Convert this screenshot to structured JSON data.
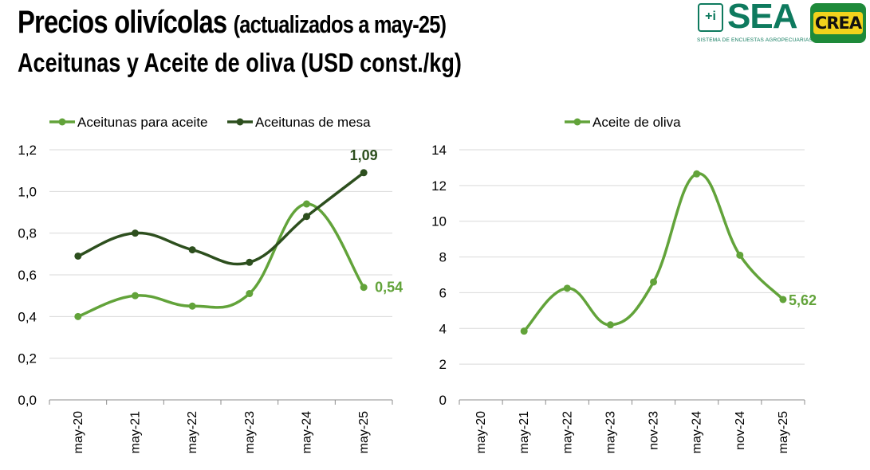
{
  "header": {
    "title": "Precios olivícolas",
    "title_paren": "(actualizados a may-25)",
    "subtitle": "Aceitunas y Aceite de oliva (USD const./kg)"
  },
  "logos": {
    "sea_icon": "+i",
    "sea_name": "SEA",
    "sea_tagline": "SISTEMA DE ENCUESTAS AGROPECUARIAS",
    "crea_name": "CREA"
  },
  "colors": {
    "light_green": "#62a33a",
    "dark_green": "#2d4f1e",
    "grid": "#d9d9d9",
    "axis": "#8c8c8c"
  },
  "chart_data": [
    {
      "type": "line",
      "categories": [
        "may-20",
        "may-21",
        "may-22",
        "may-23",
        "may-24",
        "may-25"
      ],
      "ylim": [
        0,
        1.2
      ],
      "yticks": [
        "0,0",
        "0,2",
        "0,4",
        "0,6",
        "0,8",
        "1,0",
        "1,2"
      ],
      "ytick_values": [
        0,
        0.2,
        0.4,
        0.6,
        0.8,
        1.0,
        1.2
      ],
      "legend_position": "top",
      "grid": true,
      "series": [
        {
          "name": "Aceitunas para aceite",
          "color": "#62a33a",
          "values": [
            0.4,
            0.5,
            0.45,
            0.51,
            0.94,
            0.54
          ],
          "end_label": "0,54"
        },
        {
          "name": "Aceitunas de mesa",
          "color": "#2d4f1e",
          "values": [
            0.69,
            0.8,
            0.72,
            0.66,
            0.88,
            1.09
          ],
          "end_label": "1,09"
        }
      ]
    },
    {
      "type": "line",
      "categories": [
        "may-20",
        "may-21",
        "may-22",
        "may-23",
        "nov-23",
        "may-24",
        "nov-24",
        "may-25"
      ],
      "ylim": [
        0,
        14
      ],
      "yticks": [
        "0",
        "2",
        "4",
        "6",
        "8",
        "10",
        "12",
        "14"
      ],
      "ytick_values": [
        0,
        2,
        4,
        6,
        8,
        10,
        12,
        14
      ],
      "legend_position": "top",
      "grid": true,
      "series": [
        {
          "name": "Aceite de oliva",
          "color": "#62a33a",
          "values": [
            null,
            3.85,
            6.25,
            4.2,
            6.6,
            12.65,
            8.1,
            5.62
          ],
          "end_label": "5,62"
        }
      ]
    }
  ]
}
